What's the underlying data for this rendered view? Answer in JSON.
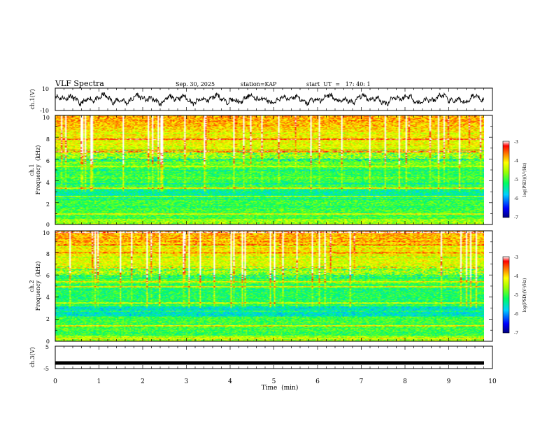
{
  "header": {
    "title": "VLF Spectra",
    "date": "Sep. 30, 2025",
    "station": "station=KAP",
    "start": "start  UT  =   17: 40: 1"
  },
  "chart_data": {
    "type": "heatmap",
    "x_axis": {
      "label": "Time  (min)",
      "range": [
        0,
        10
      ],
      "ticks": [
        "0",
        "1",
        "2",
        "3",
        "4",
        "5",
        "6",
        "7",
        "8",
        "9",
        "10"
      ]
    },
    "panels": [
      {
        "id": "ch1_waveform",
        "type": "line",
        "ylabel": "ch.1(V)",
        "ylim": [
          -10,
          10
        ],
        "yticks": [
          "10",
          "-10"
        ],
        "data_end_min": 9.8
      },
      {
        "id": "ch1_spectrogram",
        "type": "heatmap",
        "ylabel_line1": "ch.1",
        "ylabel_line2": "Frequency  (kHz)",
        "ylim": [
          0,
          10
        ],
        "yticks": [
          "0",
          "2",
          "4",
          "6",
          "8",
          "10"
        ],
        "data_end_min": 9.8,
        "colorbar": {
          "label": "log(PSD)(V²/Hz)",
          "range": [
            -7,
            -3
          ],
          "ticks": [
            "-3",
            "-4",
            "-5",
            "-6",
            "-7"
          ]
        }
      },
      {
        "id": "ch2_spectrogram",
        "type": "heatmap",
        "ylabel_line1": "ch.2",
        "ylabel_line2": "Frequency  (kHz)",
        "ylim": [
          0,
          10
        ],
        "yticks": [
          "0",
          "2",
          "4",
          "6",
          "8",
          "10"
        ],
        "data_end_min": 9.8,
        "colorbar": {
          "label": "log(PSD)(V²/Hz)",
          "range": [
            -7,
            -3
          ],
          "ticks": [
            "-3",
            "-4",
            "-5",
            "-6",
            "-7"
          ]
        }
      },
      {
        "id": "ch3_waveform",
        "type": "line",
        "ylabel": "ch.3(V)",
        "ylim": [
          -5,
          5
        ],
        "yticks": [
          "5",
          "-5"
        ],
        "flat_value": -2.5,
        "data_end_min": 9.8
      }
    ]
  }
}
